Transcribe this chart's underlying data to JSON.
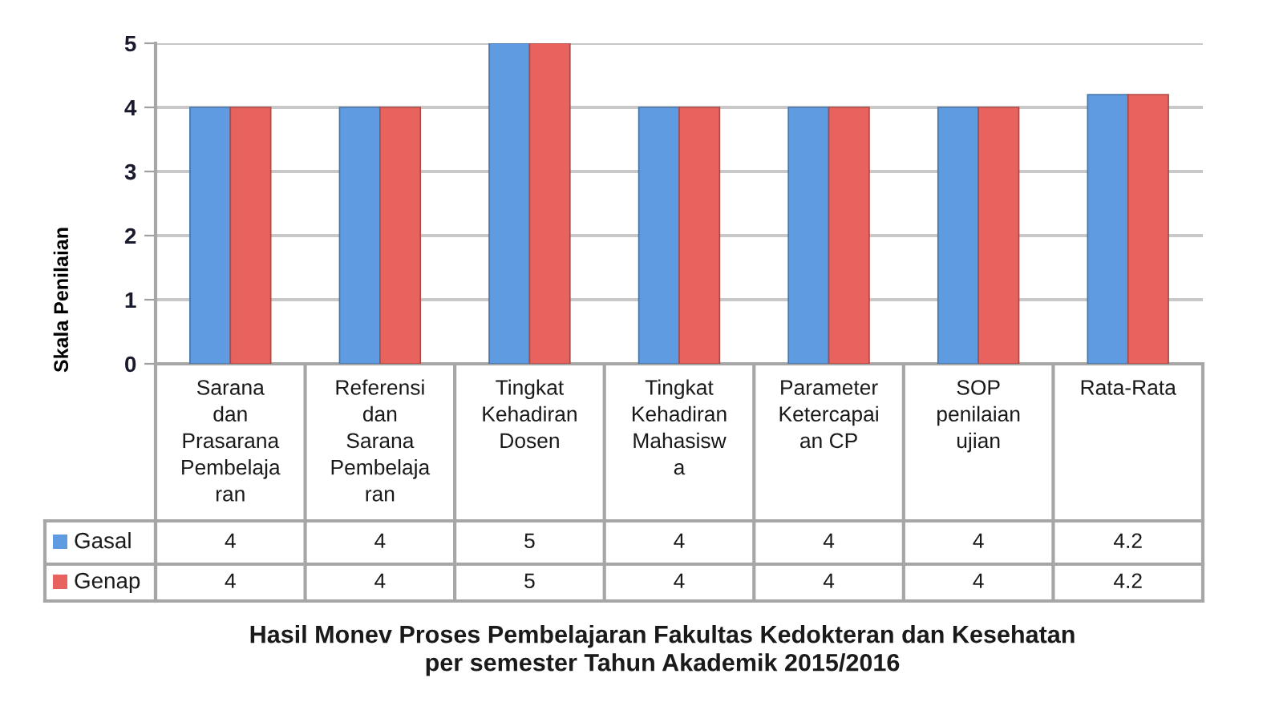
{
  "chart_data": {
    "type": "bar",
    "title": "Hasil Monev Proses Pembelajaran Fakultas Kedokteran dan Kesehatan\nper semester Tahun Akademik 2015/2016",
    "ylabel": "Skala Penilaian",
    "categories": [
      "Sarana\ndan\nPrasarana\nPembelaja\nran",
      "Referensi\ndan\nSarana\nPembelaja\nran",
      "Tingkat\nKehadiran\nDosen",
      "Tingkat\nKehadiran\nMahasisw\na",
      "Parameter\nKetercapai\nan CP",
      "SOP\npenilaian\nujian",
      "Rata-Rata"
    ],
    "series": [
      {
        "name": "Gasal",
        "color": "#5f9be0",
        "values": [
          4,
          4,
          5,
          4,
          4,
          4,
          4.2
        ]
      },
      {
        "name": "Genap",
        "color": "#e8625e",
        "values": [
          4,
          4,
          5,
          4,
          4,
          4,
          4.2
        ]
      }
    ],
    "ylim": [
      0,
      5
    ],
    "yticks": [
      0,
      1,
      2,
      3,
      4,
      5
    ],
    "grid": "y",
    "legend": "bottom left",
    "data_labels": true
  }
}
